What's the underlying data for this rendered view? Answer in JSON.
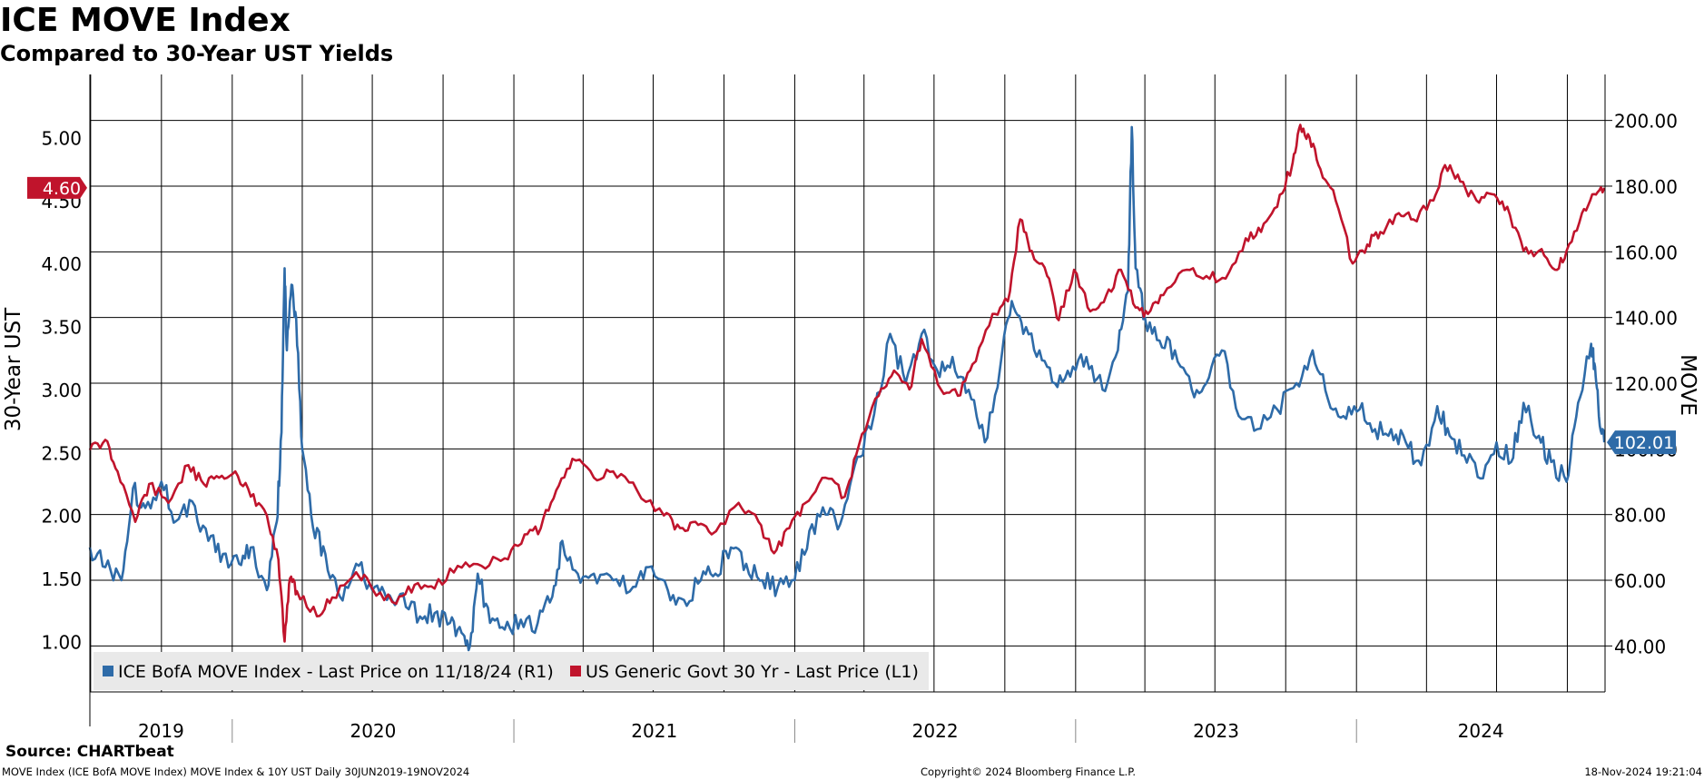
{
  "header": {
    "title": "ICE MOVE Index",
    "subtitle": "Compared to 30-Year UST Yields"
  },
  "footer": {
    "source": "Source: CHARTbeat",
    "description": "MOVE Index (ICE BofA MOVE Index) MOVE Index & 10Y UST  Daily 30JUN2019-19NOV2024",
    "copyright": "Copyright© 2024 Bloomberg Finance L.P.",
    "timestamp": "18-Nov-2024 19:21:04"
  },
  "colors": {
    "move": "#2e6ba8",
    "ust": "#c0142c",
    "grid": "#000000",
    "legend_bg": "#e9e9e9"
  },
  "chart_data": {
    "type": "line",
    "x_range": [
      "2019-06-30",
      "2024-11-19"
    ],
    "year_labels": [
      "2019",
      "2020",
      "2021",
      "2022",
      "2023",
      "2024"
    ],
    "y_left": {
      "label": "30-Year UST",
      "ticks": [
        "1.00",
        "1.50",
        "2.00",
        "2.50",
        "3.00",
        "3.50",
        "4.00",
        "4.50",
        "5.00"
      ],
      "range": [
        0.6,
        5.5
      ]
    },
    "y_right": {
      "label": "MOVE",
      "ticks": [
        "40.00",
        "60.00",
        "80.00",
        "100.00",
        "120.00",
        "140.00",
        "160.00",
        "180.00",
        "200.00"
      ],
      "range": [
        26,
        214
      ]
    },
    "legend": [
      {
        "key": "move",
        "label": "ICE BofA MOVE Index - Last Price on 11/18/24 (R1)"
      },
      {
        "key": "ust",
        "label": "US Generic Govt 30 Yr - Last Price (L1)"
      }
    ],
    "series": [
      {
        "key": "move",
        "name": "ICE BofA MOVE Index - Last Price on 11/18/24 (R1)",
        "axis": "right",
        "last_label": "102.01",
        "points": [
          [
            "2019-06-30",
            70
          ],
          [
            "2019-07-20",
            64
          ],
          [
            "2019-08-10",
            60
          ],
          [
            "2019-08-25",
            88
          ],
          [
            "2019-09-10",
            82
          ],
          [
            "2019-10-01",
            90
          ],
          [
            "2019-10-20",
            78
          ],
          [
            "2019-11-10",
            84
          ],
          [
            "2019-12-01",
            72
          ],
          [
            "2019-12-20",
            68
          ],
          [
            "2020-01-10",
            65
          ],
          [
            "2020-01-25",
            70
          ],
          [
            "2020-02-15",
            57
          ],
          [
            "2020-02-28",
            78
          ],
          [
            "2020-03-05",
            105
          ],
          [
            "2020-03-09",
            155
          ],
          [
            "2020-03-12",
            130
          ],
          [
            "2020-03-18",
            150
          ],
          [
            "2020-03-24",
            140
          ],
          [
            "2020-04-01",
            100
          ],
          [
            "2020-04-15",
            76
          ],
          [
            "2020-05-01",
            68
          ],
          [
            "2020-05-20",
            55
          ],
          [
            "2020-06-10",
            65
          ],
          [
            "2020-07-01",
            57
          ],
          [
            "2020-07-20",
            54
          ],
          [
            "2020-08-10",
            56
          ],
          [
            "2020-09-01",
            49
          ],
          [
            "2020-09-20",
            50
          ],
          [
            "2020-10-10",
            47
          ],
          [
            "2020-10-25",
            44
          ],
          [
            "2020-11-05",
            40
          ],
          [
            "2020-11-15",
            62
          ],
          [
            "2020-12-01",
            47
          ],
          [
            "2020-12-20",
            45
          ],
          [
            "2021-01-10",
            48
          ],
          [
            "2021-02-01",
            47
          ],
          [
            "2021-02-20",
            55
          ],
          [
            "2021-03-05",
            72
          ],
          [
            "2021-03-25",
            62
          ],
          [
            "2021-04-15",
            62
          ],
          [
            "2021-05-10",
            60
          ],
          [
            "2021-06-05",
            58
          ],
          [
            "2021-06-25",
            64
          ],
          [
            "2021-07-20",
            57
          ],
          [
            "2021-08-10",
            54
          ],
          [
            "2021-09-01",
            60
          ],
          [
            "2021-09-20",
            62
          ],
          [
            "2021-10-10",
            70
          ],
          [
            "2021-10-30",
            65
          ],
          [
            "2021-11-20",
            60
          ],
          [
            "2021-12-10",
            58
          ],
          [
            "2022-01-01",
            60
          ],
          [
            "2022-01-20",
            75
          ],
          [
            "2022-02-10",
            80
          ],
          [
            "2022-03-01",
            77
          ],
          [
            "2022-03-20",
            95
          ],
          [
            "2022-04-10",
            106
          ],
          [
            "2022-05-05",
            135
          ],
          [
            "2022-05-25",
            120
          ],
          [
            "2022-06-15",
            135
          ],
          [
            "2022-07-05",
            124
          ],
          [
            "2022-07-25",
            128
          ],
          [
            "2022-08-15",
            118
          ],
          [
            "2022-09-05",
            102
          ],
          [
            "2022-09-25",
            125
          ],
          [
            "2022-10-10",
            145
          ],
          [
            "2022-10-25",
            135
          ],
          [
            "2022-11-15",
            130
          ],
          [
            "2022-12-05",
            120
          ],
          [
            "2022-12-25",
            122
          ],
          [
            "2023-01-15",
            128
          ],
          [
            "2023-02-05",
            118
          ],
          [
            "2023-02-25",
            130
          ],
          [
            "2023-03-10",
            148
          ],
          [
            "2023-03-15",
            198
          ],
          [
            "2023-03-20",
            155
          ],
          [
            "2023-04-01",
            140
          ],
          [
            "2023-04-20",
            133
          ],
          [
            "2023-05-10",
            130
          ],
          [
            "2023-06-01",
            118
          ],
          [
            "2023-06-20",
            120
          ],
          [
            "2023-07-10",
            130
          ],
          [
            "2023-08-01",
            110
          ],
          [
            "2023-08-25",
            106
          ],
          [
            "2023-09-20",
            112
          ],
          [
            "2023-10-15",
            120
          ],
          [
            "2023-11-05",
            130
          ],
          [
            "2023-11-25",
            115
          ],
          [
            "2023-12-15",
            110
          ],
          [
            "2024-01-05",
            112
          ],
          [
            "2024-01-25",
            106
          ],
          [
            "2024-02-15",
            106
          ],
          [
            "2024-03-05",
            102
          ],
          [
            "2024-03-25",
            95
          ],
          [
            "2024-04-15",
            113
          ],
          [
            "2024-05-01",
            104
          ],
          [
            "2024-05-20",
            98
          ],
          [
            "2024-06-10",
            91
          ],
          [
            "2024-07-01",
            102
          ],
          [
            "2024-07-20",
            96
          ],
          [
            "2024-08-05",
            114
          ],
          [
            "2024-08-25",
            104
          ],
          [
            "2024-09-10",
            96
          ],
          [
            "2024-09-30",
            90
          ],
          [
            "2024-10-15",
            114
          ],
          [
            "2024-11-01",
            132
          ],
          [
            "2024-11-06",
            125
          ],
          [
            "2024-11-11",
            110
          ],
          [
            "2024-11-18",
            102.01
          ]
        ]
      },
      {
        "key": "ust",
        "name": "US Generic Govt 30 Yr - Last Price (L1)",
        "axis": "left",
        "last_label": "4.60",
        "points": [
          [
            "2019-06-30",
            2.52
          ],
          [
            "2019-07-20",
            2.6
          ],
          [
            "2019-08-05",
            2.35
          ],
          [
            "2019-08-28",
            1.95
          ],
          [
            "2019-09-15",
            2.25
          ],
          [
            "2019-10-10",
            2.1
          ],
          [
            "2019-11-05",
            2.4
          ],
          [
            "2019-11-25",
            2.25
          ],
          [
            "2019-12-15",
            2.3
          ],
          [
            "2020-01-05",
            2.35
          ],
          [
            "2020-01-25",
            2.15
          ],
          [
            "2020-02-15",
            2.0
          ],
          [
            "2020-03-01",
            1.65
          ],
          [
            "2020-03-09",
            1.0
          ],
          [
            "2020-03-16",
            1.5
          ],
          [
            "2020-03-25",
            1.4
          ],
          [
            "2020-04-20",
            1.2
          ],
          [
            "2020-05-10",
            1.35
          ],
          [
            "2020-06-10",
            1.55
          ],
          [
            "2020-07-01",
            1.42
          ],
          [
            "2020-08-01",
            1.3
          ],
          [
            "2020-08-25",
            1.45
          ],
          [
            "2020-09-20",
            1.42
          ],
          [
            "2020-10-20",
            1.6
          ],
          [
            "2020-11-20",
            1.6
          ],
          [
            "2020-12-20",
            1.66
          ],
          [
            "2021-01-15",
            1.85
          ],
          [
            "2021-02-05",
            1.9
          ],
          [
            "2021-02-25",
            2.2
          ],
          [
            "2021-03-18",
            2.45
          ],
          [
            "2021-04-15",
            2.3
          ],
          [
            "2021-05-10",
            2.35
          ],
          [
            "2021-06-10",
            2.2
          ],
          [
            "2021-07-15",
            2.0
          ],
          [
            "2021-08-05",
            1.9
          ],
          [
            "2021-08-25",
            1.95
          ],
          [
            "2021-09-15",
            1.85
          ],
          [
            "2021-10-20",
            2.1
          ],
          [
            "2021-11-15",
            1.95
          ],
          [
            "2021-12-05",
            1.7
          ],
          [
            "2021-12-25",
            1.9
          ],
          [
            "2022-01-15",
            2.1
          ],
          [
            "2022-02-10",
            2.3
          ],
          [
            "2022-03-07",
            2.15
          ],
          [
            "2022-03-25",
            2.55
          ],
          [
            "2022-04-20",
            2.95
          ],
          [
            "2022-05-10",
            3.15
          ],
          [
            "2022-05-30",
            3.0
          ],
          [
            "2022-06-15",
            3.4
          ],
          [
            "2022-07-10",
            3.0
          ],
          [
            "2022-08-01",
            2.95
          ],
          [
            "2022-08-20",
            3.2
          ],
          [
            "2022-09-15",
            3.6
          ],
          [
            "2022-10-05",
            3.7
          ],
          [
            "2022-10-21",
            4.35
          ],
          [
            "2022-11-05",
            4.1
          ],
          [
            "2022-11-25",
            3.9
          ],
          [
            "2022-12-10",
            3.55
          ],
          [
            "2022-12-30",
            3.95
          ],
          [
            "2023-01-20",
            3.62
          ],
          [
            "2023-02-10",
            3.75
          ],
          [
            "2023-03-01",
            3.95
          ],
          [
            "2023-03-20",
            3.65
          ],
          [
            "2023-04-05",
            3.6
          ],
          [
            "2023-04-25",
            3.75
          ],
          [
            "2023-05-25",
            3.95
          ],
          [
            "2023-06-20",
            3.9
          ],
          [
            "2023-07-15",
            3.88
          ],
          [
            "2023-08-10",
            4.2
          ],
          [
            "2023-08-30",
            4.25
          ],
          [
            "2023-09-20",
            4.45
          ],
          [
            "2023-10-10",
            4.8
          ],
          [
            "2023-10-20",
            5.1
          ],
          [
            "2023-11-01",
            5.0
          ],
          [
            "2023-11-15",
            4.75
          ],
          [
            "2023-12-05",
            4.5
          ],
          [
            "2023-12-27",
            4.0
          ],
          [
            "2024-01-15",
            4.15
          ],
          [
            "2024-02-01",
            4.25
          ],
          [
            "2024-02-25",
            4.4
          ],
          [
            "2024-03-15",
            4.35
          ],
          [
            "2024-04-10",
            4.5
          ],
          [
            "2024-04-25",
            4.78
          ],
          [
            "2024-05-15",
            4.65
          ],
          [
            "2024-06-05",
            4.5
          ],
          [
            "2024-06-25",
            4.55
          ],
          [
            "2024-07-15",
            4.45
          ],
          [
            "2024-08-05",
            4.1
          ],
          [
            "2024-08-25",
            4.1
          ],
          [
            "2024-09-15",
            3.95
          ],
          [
            "2024-09-30",
            4.1
          ],
          [
            "2024-10-20",
            4.4
          ],
          [
            "2024-11-05",
            4.55
          ],
          [
            "2024-11-18",
            4.6
          ]
        ]
      }
    ]
  }
}
